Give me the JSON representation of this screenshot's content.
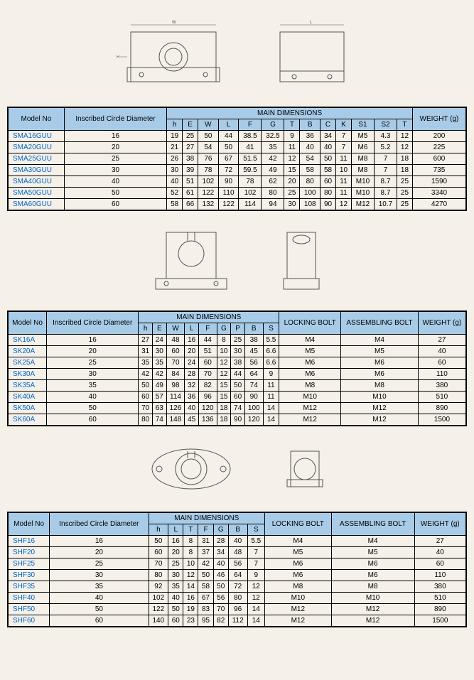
{
  "t1": {
    "headers": {
      "model": "Model No",
      "circle": "Inscribed Circle Diameter",
      "main": "MAIN DIMENSIONS",
      "weight": "WEIGHT (g)"
    },
    "cols": [
      "h",
      "E",
      "W",
      "L",
      "F",
      "G",
      "T",
      "B",
      "C",
      "K",
      "S1",
      "S2",
      "T"
    ],
    "rows": [
      {
        "m": "SMA16GUU",
        "d": "16",
        "v": [
          "19",
          "25",
          "50",
          "44",
          "38.5",
          "32.5",
          "9",
          "36",
          "34",
          "7",
          "M5",
          "4.3",
          "12"
        ],
        "w": "200"
      },
      {
        "m": "SMA20GUU",
        "d": "20",
        "v": [
          "21",
          "27",
          "54",
          "50",
          "41",
          "35",
          "11",
          "40",
          "40",
          "7",
          "M6",
          "5.2",
          "12"
        ],
        "w": "225"
      },
      {
        "m": "SMA25GUU",
        "d": "25",
        "v": [
          "26",
          "38",
          "76",
          "67",
          "51.5",
          "42",
          "12",
          "54",
          "50",
          "11",
          "M8",
          "7",
          "18"
        ],
        "w": "600"
      },
      {
        "m": "SMA30GUU",
        "d": "30",
        "v": [
          "30",
          "39",
          "78",
          "72",
          "59.5",
          "49",
          "15",
          "58",
          "58",
          "10",
          "M8",
          "7",
          "18"
        ],
        "w": "735"
      },
      {
        "m": "SMA40GUU",
        "d": "40",
        "v": [
          "40",
          "51",
          "102",
          "90",
          "78",
          "62",
          "20",
          "80",
          "60",
          "11",
          "M10",
          "8.7",
          "25"
        ],
        "w": "1590"
      },
      {
        "m": "SMA50GUU",
        "d": "50",
        "v": [
          "52",
          "61",
          "122",
          "110",
          "102",
          "80",
          "25",
          "100",
          "80",
          "11",
          "M10",
          "8.7",
          "25"
        ],
        "w": "3340"
      },
      {
        "m": "SMA60GUU",
        "d": "60",
        "v": [
          "58",
          "66",
          "132",
          "122",
          "114",
          "94",
          "30",
          "108",
          "90",
          "12",
          "M12",
          "10.7",
          "25"
        ],
        "w": "4270"
      }
    ]
  },
  "t2": {
    "headers": {
      "model": "Model No",
      "circle": "Inscribed Circle Diameter",
      "main": "MAIN DIMENSIONS",
      "lock": "LOCKING BOLT",
      "asm": "ASSEMBLING BOLT",
      "weight": "WEIGHT (g)"
    },
    "cols": [
      "h",
      "E",
      "W",
      "L",
      "F",
      "G",
      "P",
      "B",
      "S"
    ],
    "rows": [
      {
        "m": "SK16A",
        "d": "16",
        "v": [
          "27",
          "24",
          "48",
          "16",
          "44",
          "8",
          "25",
          "38",
          "5.5"
        ],
        "lb": "M4",
        "ab": "M4",
        "w": "27"
      },
      {
        "m": "SK20A",
        "d": "20",
        "v": [
          "31",
          "30",
          "60",
          "20",
          "51",
          "10",
          "30",
          "45",
          "6.6"
        ],
        "lb": "M5",
        "ab": "M5",
        "w": "40"
      },
      {
        "m": "SK25A",
        "d": "25",
        "v": [
          "35",
          "35",
          "70",
          "24",
          "60",
          "12",
          "38",
          "56",
          "6.6"
        ],
        "lb": "M6",
        "ab": "M6",
        "w": "60"
      },
      {
        "m": "SK30A",
        "d": "30",
        "v": [
          "42",
          "42",
          "84",
          "28",
          "70",
          "12",
          "44",
          "64",
          "9"
        ],
        "lb": "M6",
        "ab": "M6",
        "w": "110"
      },
      {
        "m": "SK35A",
        "d": "35",
        "v": [
          "50",
          "49",
          "98",
          "32",
          "82",
          "15",
          "50",
          "74",
          "11"
        ],
        "lb": "M8",
        "ab": "M8",
        "w": "380"
      },
      {
        "m": "SK40A",
        "d": "40",
        "v": [
          "60",
          "57",
          "114",
          "36",
          "96",
          "15",
          "60",
          "90",
          "11"
        ],
        "lb": "M10",
        "ab": "M10",
        "w": "510"
      },
      {
        "m": "SK50A",
        "d": "50",
        "v": [
          "70",
          "63",
          "126",
          "40",
          "120",
          "18",
          "74",
          "100",
          "14"
        ],
        "lb": "M12",
        "ab": "M12",
        "w": "890"
      },
      {
        "m": "SK60A",
        "d": "60",
        "v": [
          "80",
          "74",
          "148",
          "45",
          "136",
          "18",
          "90",
          "120",
          "14"
        ],
        "lb": "M12",
        "ab": "M12",
        "w": "1500"
      }
    ]
  },
  "t3": {
    "headers": {
      "model": "Model No",
      "circle": "Inscribed Circle Diameter",
      "main": "MAIN DIMENSIONS",
      "lock": "LOCKING BOLT",
      "asm": "ASSEMBLING BOLT",
      "weight": "WEIGHT (g)"
    },
    "cols": [
      "h",
      "L",
      "T",
      "F",
      "G",
      "B",
      "S"
    ],
    "rows": [
      {
        "m": "SHF16",
        "d": "16",
        "v": [
          "50",
          "16",
          "8",
          "31",
          "28",
          "40",
          "5.5"
        ],
        "lb": "M4",
        "ab": "M4",
        "w": "27"
      },
      {
        "m": "SHF20",
        "d": "20",
        "v": [
          "60",
          "20",
          "8",
          "37",
          "34",
          "48",
          "7"
        ],
        "lb": "M5",
        "ab": "M5",
        "w": "40"
      },
      {
        "m": "SHF25",
        "d": "25",
        "v": [
          "70",
          "25",
          "10",
          "42",
          "40",
          "56",
          "7"
        ],
        "lb": "M6",
        "ab": "M6",
        "w": "60"
      },
      {
        "m": "SHF30",
        "d": "30",
        "v": [
          "80",
          "30",
          "12",
          "50",
          "46",
          "64",
          "9"
        ],
        "lb": "M6",
        "ab": "M6",
        "w": "110"
      },
      {
        "m": "SHF35",
        "d": "35",
        "v": [
          "92",
          "35",
          "14",
          "58",
          "50",
          "72",
          "12"
        ],
        "lb": "M8",
        "ab": "M8",
        "w": "380"
      },
      {
        "m": "SHF40",
        "d": "40",
        "v": [
          "102",
          "40",
          "16",
          "67",
          "56",
          "80",
          "12"
        ],
        "lb": "M10",
        "ab": "M10",
        "w": "510"
      },
      {
        "m": "SHF50",
        "d": "50",
        "v": [
          "122",
          "50",
          "19",
          "83",
          "70",
          "96",
          "14"
        ],
        "lb": "M12",
        "ab": "M12",
        "w": "890"
      },
      {
        "m": "SHF60",
        "d": "60",
        "v": [
          "140",
          "60",
          "23",
          "95",
          "82",
          "112",
          "14"
        ],
        "lb": "M12",
        "ab": "M12",
        "w": "1500"
      }
    ]
  }
}
